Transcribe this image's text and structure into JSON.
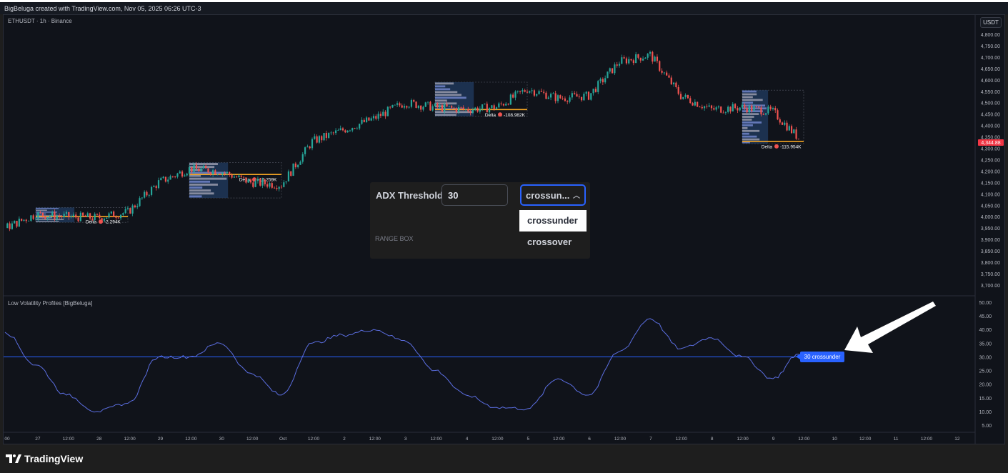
{
  "header": {
    "credit": "BigBeluga created with TradingView.com, Nov 05, 2025 06:26 UTC-3"
  },
  "symbol": {
    "label": "ETHUSDT · 1h · Binance",
    "currency": "USDT",
    "last_price": "4,344.88"
  },
  "indicator": {
    "title": "Low Volatility Profiles [BigBeluga]",
    "signal_label": "30 crossunder"
  },
  "settings": {
    "adx_label": "ADX Threshold",
    "adx_value": "30",
    "mode_selected": "crossun...",
    "section": "RANGE BOX",
    "options": [
      "crossunder",
      "crossover"
    ]
  },
  "footer": {
    "brand": "TradingView"
  },
  "colors": {
    "bg": "#10131a",
    "up": "#26a69a",
    "down": "#ef5350",
    "adx": "#5b6ee1",
    "threshold": "#2962ff",
    "poc": "#f5a623",
    "accent": "#2962ff"
  },
  "chart_data": [
    {
      "type": "candlestick",
      "title": "ETHUSDT · 1h · Binance",
      "ylim": [
        3680,
        4820
      ],
      "price_ticks": [
        "4,800.00",
        "4,750.00",
        "4,700.00",
        "4,650.00",
        "4,600.00",
        "4,550.00",
        "4,500.00",
        "4,450.00",
        "4,400.00",
        "4,350.00",
        "4,300.00",
        "4,250.00",
        "4,200.00",
        "4,150.00",
        "4,100.00",
        "4,050.00",
        "4,000.00",
        "3,950.00",
        "3,900.00",
        "3,850.00",
        "3,800.00",
        "3,750.00",
        "3,700.00"
      ],
      "x_ticks": [
        "00",
        "27",
        "12:00",
        "28",
        "12:00",
        "29",
        "12:00",
        "30",
        "12:00",
        "Oct",
        "12:00",
        "2",
        "12:00",
        "3",
        "12:00",
        "4",
        "12:00",
        "5",
        "12:00",
        "6",
        "12:00",
        "7",
        "12:00",
        "8",
        "12:00",
        "9",
        "12:00",
        "10",
        "12:00",
        "11",
        "12:00",
        "12"
      ],
      "close_path": {
        "x": [
          "Sep 26 12:00",
          "Sep 27 00:00",
          "Sep 27 12:00",
          "Sep 28 00:00",
          "Sep 28 12:00",
          "Sep 29 00:00",
          "Sep 29 12:00",
          "Sep 30 00:00",
          "Sep 30 12:00",
          "Oct 1 00:00",
          "Oct 1 12:00",
          "Oct 2 00:00",
          "Oct 2 12:00",
          "Oct 3 00:00",
          "Oct 3 12:00",
          "Oct 4 00:00",
          "Oct 4 12:00",
          "Oct 5 00:00",
          "Oct 5 12:00",
          "Oct 6 00:00",
          "Oct 6 12:00",
          "Oct 7 00:00",
          "Oct 7 12:00",
          "Oct 8 00:00",
          "Oct 8 12:00",
          "Oct 9 00:00",
          "Oct 9 10:00"
        ],
        "y": [
          3950,
          4010,
          4000,
          3995,
          4020,
          4150,
          4210,
          4200,
          4150,
          4140,
          4330,
          4380,
          4430,
          4500,
          4480,
          4470,
          4480,
          4560,
          4520,
          4530,
          4680,
          4710,
          4530,
          4470,
          4480,
          4460,
          4345
        ]
      },
      "profiles": [
        {
          "start": "Sep 27 00:00",
          "end": "Sep 28 12:00",
          "high": 4040,
          "low": 3975,
          "poc": 4000,
          "delta": "-2.294K"
        },
        {
          "start": "Sep 29 12:00",
          "end": "Oct 1 00:00",
          "high": 4237,
          "low": 4082,
          "poc": 4185,
          "delta": "-15.259K"
        },
        {
          "start": "Oct 3 12:00",
          "end": "Oct 5 00:00",
          "high": 4590,
          "low": 4440,
          "poc": 4470,
          "delta": "-108.982K"
        },
        {
          "start": "Oct 8 12:00",
          "end": "Oct 9 12:00",
          "high": 4555,
          "low": 4320,
          "poc": 4330,
          "delta": "-115.954K"
        }
      ],
      "delta_label": "Delta"
    },
    {
      "type": "line",
      "title": "Low Volatility Profiles [BigBeluga]",
      "ylim": [
        2,
        52
      ],
      "y_ticks": [
        "50.00",
        "45.00",
        "40.00",
        "35.00",
        "30.00",
        "25.00",
        "20.00",
        "15.00",
        "10.00",
        "5.00"
      ],
      "threshold": 30,
      "adx": [
        39,
        27,
        16,
        10,
        13,
        30,
        30,
        35,
        24,
        16,
        35,
        38,
        40,
        36,
        25,
        16,
        11.5,
        11,
        22,
        16,
        32,
        44,
        33,
        37,
        30,
        22,
        31
      ]
    }
  ]
}
